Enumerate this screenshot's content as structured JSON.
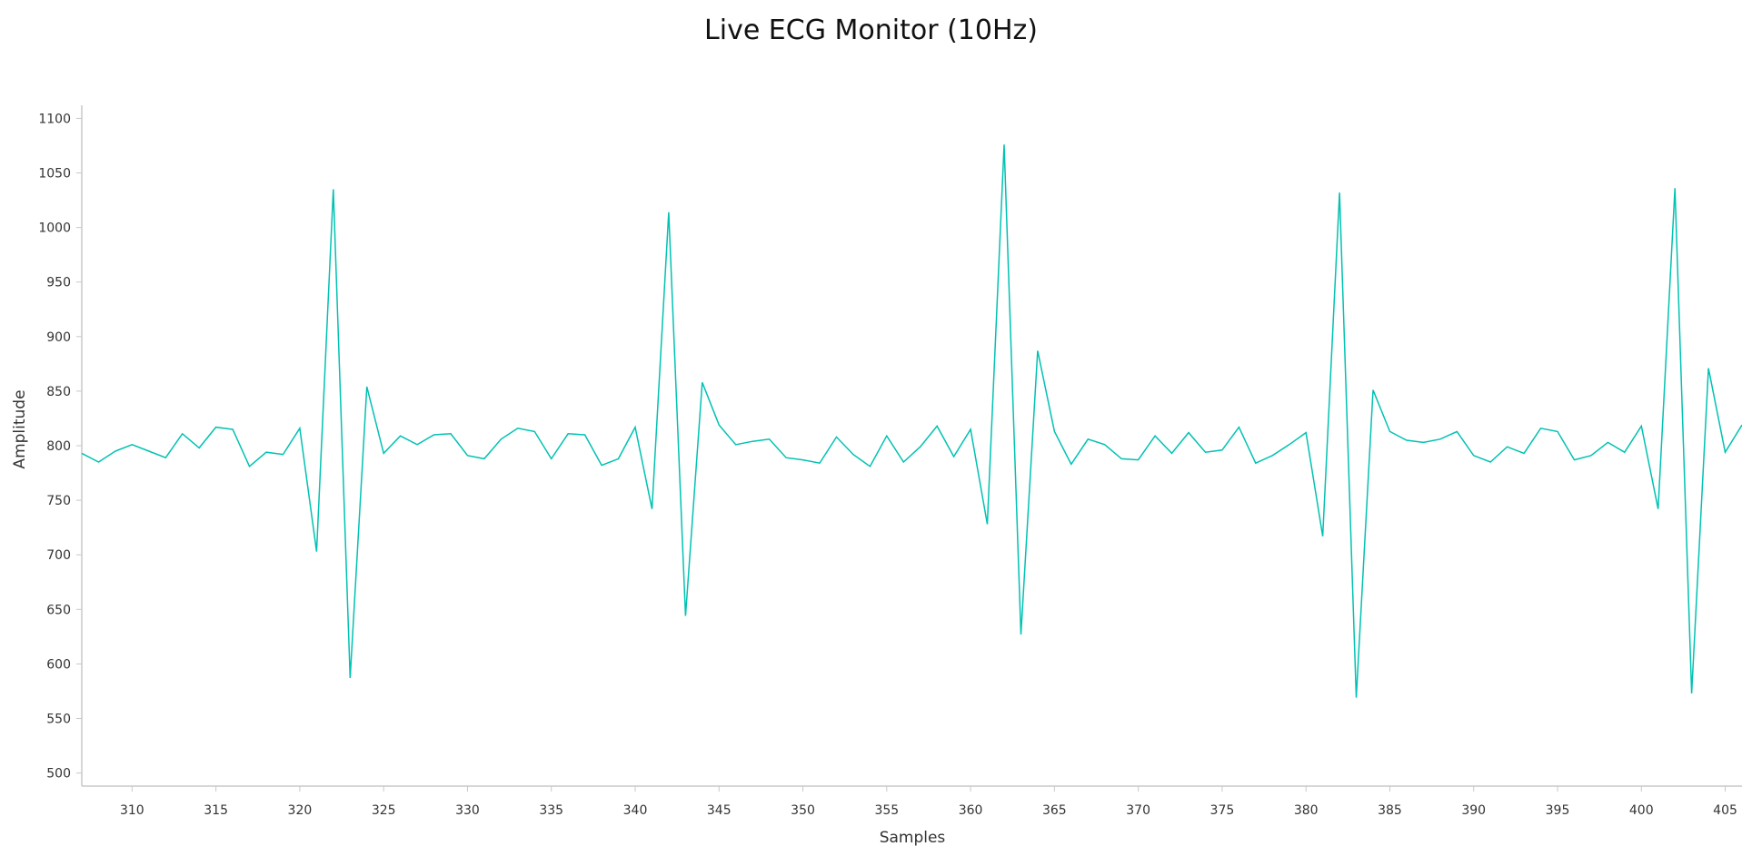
{
  "chart_data": {
    "type": "line",
    "title": "Live ECG Monitor (10Hz)",
    "xlabel": "Samples",
    "ylabel": "Amplitude",
    "xlim": [
      307,
      406
    ],
    "ylim": [
      488,
      1112
    ],
    "x_ticks": [
      310,
      315,
      320,
      325,
      330,
      335,
      340,
      345,
      350,
      355,
      360,
      365,
      370,
      375,
      380,
      385,
      390,
      395,
      400,
      405
    ],
    "y_ticks": [
      500,
      550,
      600,
      650,
      700,
      750,
      800,
      850,
      900,
      950,
      1000,
      1050,
      1100
    ],
    "grid": false,
    "legend": "none",
    "line_color": "#00c2b2",
    "series": [
      {
        "x": [
          307,
          308,
          309,
          310,
          311,
          312,
          313,
          314,
          315,
          316,
          317,
          318,
          319,
          320,
          321,
          322,
          323,
          324,
          325,
          326,
          327,
          328,
          329,
          330,
          331,
          332,
          333,
          334,
          335,
          336,
          337,
          338,
          339,
          340,
          341,
          342,
          343,
          344,
          345,
          346,
          347,
          348,
          349,
          350,
          351,
          352,
          353,
          354,
          355,
          356,
          357,
          358,
          359,
          360,
          361,
          362,
          363,
          364,
          365,
          366,
          367,
          368,
          369,
          370,
          371,
          372,
          373,
          374,
          375,
          376,
          377,
          378,
          379,
          380,
          381,
          382,
          383,
          384,
          385,
          386,
          387,
          388,
          389,
          390,
          391,
          392,
          393,
          394,
          395,
          396,
          397,
          398,
          399,
          400,
          401,
          402,
          403,
          404,
          405,
          406
        ],
        "y": [
          793,
          785,
          795,
          801,
          795,
          789,
          811,
          798,
          817,
          815,
          781,
          794,
          792,
          816,
          703,
          1035,
          587,
          854,
          793,
          809,
          801,
          810,
          811,
          791,
          788,
          806,
          816,
          813,
          788,
          811,
          810,
          782,
          788,
          817,
          742,
          1014,
          644,
          858,
          819,
          801,
          804,
          806,
          789,
          787,
          784,
          808,
          792,
          781,
          809,
          785,
          799,
          818,
          790,
          815,
          728,
          1076,
          627,
          887,
          813,
          783,
          806,
          801,
          788,
          787,
          809,
          793,
          812,
          794,
          796,
          817,
          784,
          791,
          801,
          812,
          717,
          1032,
          569,
          851,
          813,
          805,
          803,
          806,
          813,
          791,
          785,
          799,
          793,
          816,
          813,
          787,
          791,
          803,
          794,
          818,
          742,
          1036,
          573,
          871,
          794,
          819
        ]
      }
    ]
  }
}
